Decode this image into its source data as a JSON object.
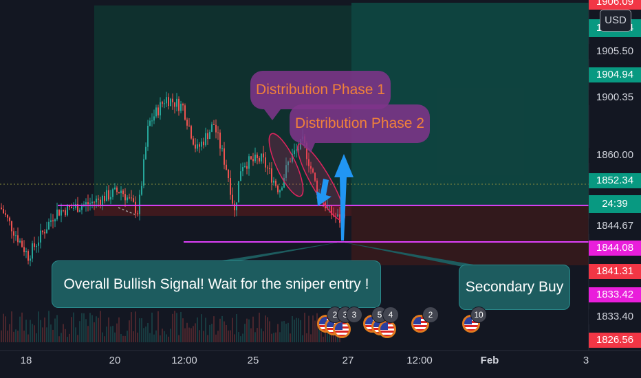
{
  "chart_data": {
    "type": "candlestick",
    "title": "",
    "ylim": [
      1824,
      1907
    ],
    "price_labels": [
      {
        "value": 1905.5,
        "text": "1905.50"
      },
      {
        "value": 1904.94,
        "text": "1904.94",
        "style": "teal"
      },
      {
        "value": 1900.35,
        "text": "1900.35"
      },
      {
        "value": 1860.0,
        "text": "1860.00"
      },
      {
        "value": 1852.34,
        "text": "1852.34",
        "style": "teal"
      },
      {
        "value": 1844.67,
        "text": "1844.67"
      },
      {
        "value": 1844.08,
        "text": "1844.08",
        "style": "magenta"
      },
      {
        "value": 1841.31,
        "text": "1841.31",
        "style": "red"
      },
      {
        "value": 1833.42,
        "text": "1833.42",
        "style": "magenta"
      },
      {
        "value": 1833.4,
        "text": "1833.40"
      }
    ],
    "top_partial_labels": [
      "1906.09",
      "1905.54"
    ],
    "bottom_partial_label": "1826.56",
    "countdown": "24:39",
    "time_labels": [
      "18",
      "20",
      "12:00",
      "25",
      "27",
      "12:00",
      "Feb",
      "3"
    ],
    "currency": "USD",
    "levels": {
      "resistance_line": 1847.5,
      "support_line": 1836.0,
      "dotted_last": 1852.34
    },
    "annotations": {
      "phase1": "Distribution Phase 1",
      "phase2": "Distribution Phase 2",
      "bullish": "Overall Bullish Signal! Wait for the sniper entry !",
      "secondary": "Secondary Buy"
    },
    "events": [
      {
        "count": "2"
      },
      {
        "count": "3"
      },
      {
        "count": "3"
      },
      {
        "count": "5"
      },
      {
        "count": "4"
      },
      {
        "count": "2"
      },
      {
        "count": "10"
      }
    ]
  }
}
